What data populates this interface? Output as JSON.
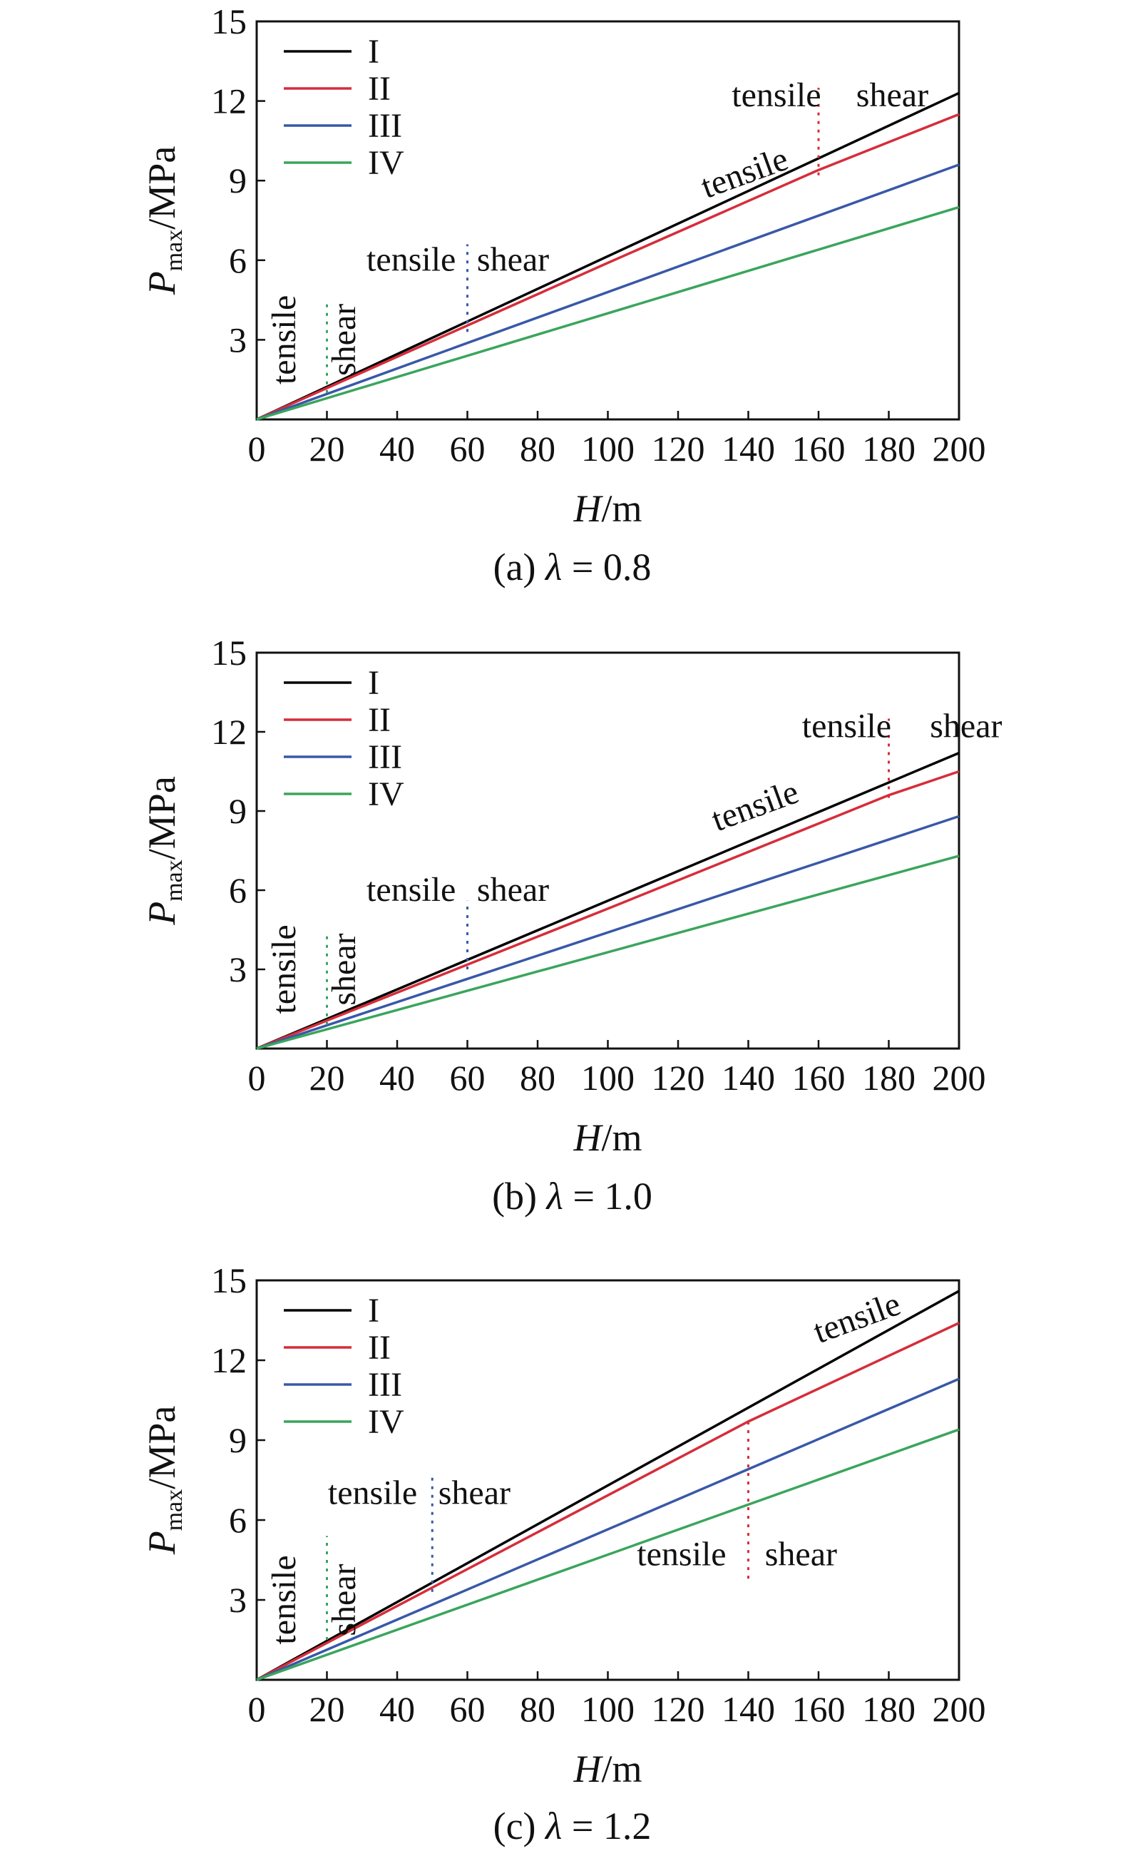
{
  "colors": {
    "I": "#000000",
    "II": "#d62d3a",
    "III": "#3858a8",
    "IV": "#3aa55c"
  },
  "chart_data": [
    {
      "type": "line",
      "caption_prefix": "(a)",
      "caption_symbol": "λ",
      "caption_value": "= 0.8",
      "xlabel": "H/m",
      "ylabel": "Pmax/MPa",
      "ylabel_base": "P",
      "ylabel_sub": "max",
      "ylabel_rest": "/MPa",
      "xlim": [
        0,
        200
      ],
      "ylim": [
        0,
        15
      ],
      "xticks": [
        0,
        20,
        40,
        60,
        80,
        100,
        120,
        140,
        160,
        180,
        200
      ],
      "yticks": [
        3,
        6,
        9,
        12,
        15
      ],
      "legend": "top-left",
      "series": [
        {
          "name": "I",
          "color": "#000000",
          "x": [
            0,
            200
          ],
          "y": [
            0,
            12.3
          ]
        },
        {
          "name": "II",
          "color": "#d62d3a",
          "x": [
            0,
            100,
            160,
            200
          ],
          "y": [
            0,
            5.9,
            9.4,
            11.5
          ]
        },
        {
          "name": "III",
          "color": "#3858a8",
          "x": [
            0,
            200
          ],
          "y": [
            0,
            9.6
          ]
        },
        {
          "name": "IV",
          "color": "#3aa55c",
          "x": [
            0,
            200
          ],
          "y": [
            0,
            8.0
          ]
        }
      ],
      "transitions": [
        {
          "x": 20,
          "y0": 1.0,
          "y1": 4.4,
          "color": "#3aa55c"
        },
        {
          "x": 60,
          "y0": 3.3,
          "y1": 6.6,
          "color": "#3858a8"
        },
        {
          "x": 160,
          "y0": 9.2,
          "y1": 12.5,
          "color": "#d62d3a"
        }
      ],
      "annotations": [
        {
          "text": "tensile",
          "x": 11,
          "y": 3.0,
          "rotate": -90
        },
        {
          "text": "shear",
          "x": 28,
          "y": 3.0,
          "rotate": -90
        },
        {
          "text": "tensile",
          "x": 44,
          "y": 5.6,
          "rotate": 0
        },
        {
          "text": "shear",
          "x": 73,
          "y": 5.6,
          "rotate": 0
        },
        {
          "text": "tensile",
          "x": 148,
          "y": 11.8,
          "rotate": 0
        },
        {
          "text": "shear",
          "x": 181,
          "y": 11.8,
          "rotate": 0
        },
        {
          "text": "tensile",
          "x": 140,
          "y": 8.9,
          "rotate": -20
        }
      ]
    },
    {
      "type": "line",
      "caption_prefix": "(b)",
      "caption_symbol": "λ",
      "caption_value": "= 1.0",
      "xlabel": "H/m",
      "ylabel": "Pmax/MPa",
      "ylabel_base": "P",
      "ylabel_sub": "max",
      "ylabel_rest": "/MPa",
      "xlim": [
        0,
        200
      ],
      "ylim": [
        0,
        15
      ],
      "xticks": [
        0,
        20,
        40,
        60,
        80,
        100,
        120,
        140,
        160,
        180,
        200
      ],
      "yticks": [
        3,
        6,
        9,
        12,
        15
      ],
      "legend": "top-left",
      "series": [
        {
          "name": "I",
          "color": "#000000",
          "x": [
            0,
            200
          ],
          "y": [
            0,
            11.2
          ]
        },
        {
          "name": "II",
          "color": "#d62d3a",
          "x": [
            0,
            100,
            180,
            200
          ],
          "y": [
            0,
            5.3,
            9.6,
            10.5
          ]
        },
        {
          "name": "III",
          "color": "#3858a8",
          "x": [
            0,
            200
          ],
          "y": [
            0,
            8.8
          ]
        },
        {
          "name": "IV",
          "color": "#3aa55c",
          "x": [
            0,
            200
          ],
          "y": [
            0,
            7.3
          ]
        }
      ],
      "transitions": [
        {
          "x": 20,
          "y0": 0.9,
          "y1": 4.4,
          "color": "#3aa55c"
        },
        {
          "x": 60,
          "y0": 3.0,
          "y1": 5.6,
          "color": "#3858a8"
        },
        {
          "x": 180,
          "y0": 9.5,
          "y1": 12.5,
          "color": "#d62d3a"
        }
      ],
      "annotations": [
        {
          "text": "tensile",
          "x": 11,
          "y": 3.0,
          "rotate": -90
        },
        {
          "text": "shear",
          "x": 28,
          "y": 3.0,
          "rotate": -90
        },
        {
          "text": "tensile",
          "x": 44,
          "y": 5.6,
          "rotate": 0
        },
        {
          "text": "shear",
          "x": 73,
          "y": 5.6,
          "rotate": 0
        },
        {
          "text": "tensile",
          "x": 168,
          "y": 11.8,
          "rotate": 0
        },
        {
          "text": "shear",
          "x": 202,
          "y": 11.8,
          "rotate": 0
        },
        {
          "text": "tensile",
          "x": 143,
          "y": 8.8,
          "rotate": -20
        }
      ]
    },
    {
      "type": "line",
      "caption_prefix": "(c)",
      "caption_symbol": "λ",
      "caption_value": "= 1.2",
      "xlabel": "H/m",
      "ylabel": "Pmax/MPa",
      "ylabel_base": "P",
      "ylabel_sub": "max",
      "ylabel_rest": "/MPa",
      "xlim": [
        0,
        200
      ],
      "ylim": [
        0,
        15
      ],
      "xticks": [
        0,
        20,
        40,
        60,
        80,
        100,
        120,
        140,
        160,
        180,
        200
      ],
      "yticks": [
        3,
        6,
        9,
        12,
        15
      ],
      "legend": "top-left",
      "series": [
        {
          "name": "I",
          "color": "#000000",
          "x": [
            0,
            200
          ],
          "y": [
            0,
            14.6
          ]
        },
        {
          "name": "II",
          "color": "#d62d3a",
          "x": [
            0,
            140,
            200
          ],
          "y": [
            0,
            9.7,
            13.4
          ]
        },
        {
          "name": "III",
          "color": "#3858a8",
          "x": [
            0,
            200
          ],
          "y": [
            0,
            11.3
          ]
        },
        {
          "name": "IV",
          "color": "#3aa55c",
          "x": [
            0,
            200
          ],
          "y": [
            0,
            9.4
          ]
        }
      ],
      "transitions": [
        {
          "x": 20,
          "y0": 1.5,
          "y1": 5.4,
          "color": "#3aa55c"
        },
        {
          "x": 50,
          "y0": 3.3,
          "y1": 7.6,
          "color": "#3858a8"
        },
        {
          "x": 140,
          "y0": 3.8,
          "y1": 9.8,
          "color": "#d62d3a"
        }
      ],
      "annotations": [
        {
          "text": "tensile",
          "x": 11,
          "y": 3.0,
          "rotate": -90
        },
        {
          "text": "shear",
          "x": 28,
          "y": 3.0,
          "rotate": -90
        },
        {
          "text": "tensile",
          "x": 33,
          "y": 6.6,
          "rotate": 0
        },
        {
          "text": "shear",
          "x": 62,
          "y": 6.6,
          "rotate": 0
        },
        {
          "text": "tensile",
          "x": 121,
          "y": 4.3,
          "rotate": 0
        },
        {
          "text": "shear",
          "x": 155,
          "y": 4.3,
          "rotate": 0
        },
        {
          "text": "tensile",
          "x": 172,
          "y": 13.2,
          "rotate": -20
        }
      ]
    }
  ]
}
